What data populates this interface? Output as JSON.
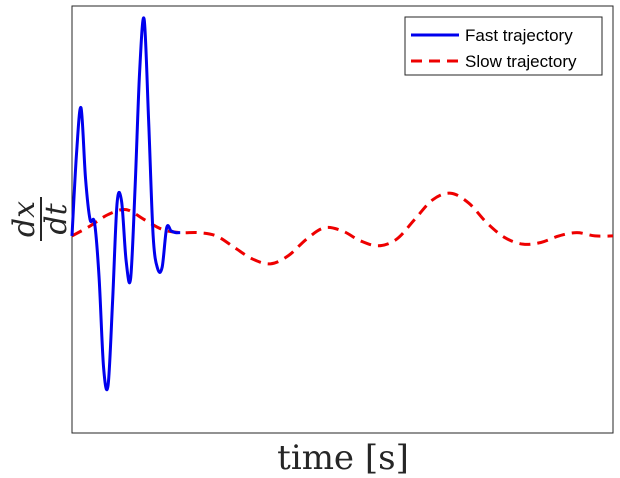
{
  "chart_data": {
    "type": "line",
    "title": "",
    "xlabel": "time [s]",
    "ylabel": {
      "numerator": "dx",
      "denominator": "dt"
    },
    "xlim": [
      0,
      30
    ],
    "ylim": [
      -1.2,
      1.4
    ],
    "grid": false,
    "legend_position": "top-right",
    "series": [
      {
        "name": "Fast trajectory",
        "color": "#0000ee",
        "style": "solid",
        "x": [
          0,
          0.25,
          0.5,
          0.75,
          1.0,
          1.25,
          1.5,
          1.75,
          2.0,
          2.25,
          2.5,
          2.75,
          3.0,
          3.25,
          3.5,
          3.75,
          4.0,
          4.25,
          4.5,
          4.75,
          5.0,
          5.25,
          5.5,
          5.75,
          6.0
        ],
        "y": [
          0.0,
          0.5,
          0.78,
          0.35,
          0.1,
          0.08,
          -0.25,
          -0.8,
          -0.91,
          -0.4,
          0.2,
          0.21,
          -0.15,
          -0.26,
          0.3,
          1.0,
          1.32,
          0.7,
          0.0,
          -0.2,
          -0.19,
          0.05,
          0.03,
          0.02,
          0.02
        ]
      },
      {
        "name": "Slow trajectory",
        "color": "#ee0000",
        "style": "dashed",
        "x": [
          0,
          1,
          2,
          3,
          4,
          5,
          6,
          7,
          8,
          9,
          10,
          11,
          12,
          13,
          14,
          15,
          16,
          17,
          18,
          19,
          20,
          21,
          22,
          23,
          24,
          25,
          26,
          27,
          28,
          29,
          30
        ],
        "y": [
          0.0,
          0.06,
          0.13,
          0.16,
          0.1,
          0.04,
          0.02,
          0.02,
          0.0,
          -0.07,
          -0.14,
          -0.17,
          -0.12,
          -0.02,
          0.05,
          0.03,
          -0.03,
          -0.06,
          -0.02,
          0.1,
          0.22,
          0.26,
          0.2,
          0.08,
          -0.01,
          -0.05,
          -0.04,
          0.0,
          0.02,
          0.0,
          0.0
        ]
      }
    ]
  }
}
